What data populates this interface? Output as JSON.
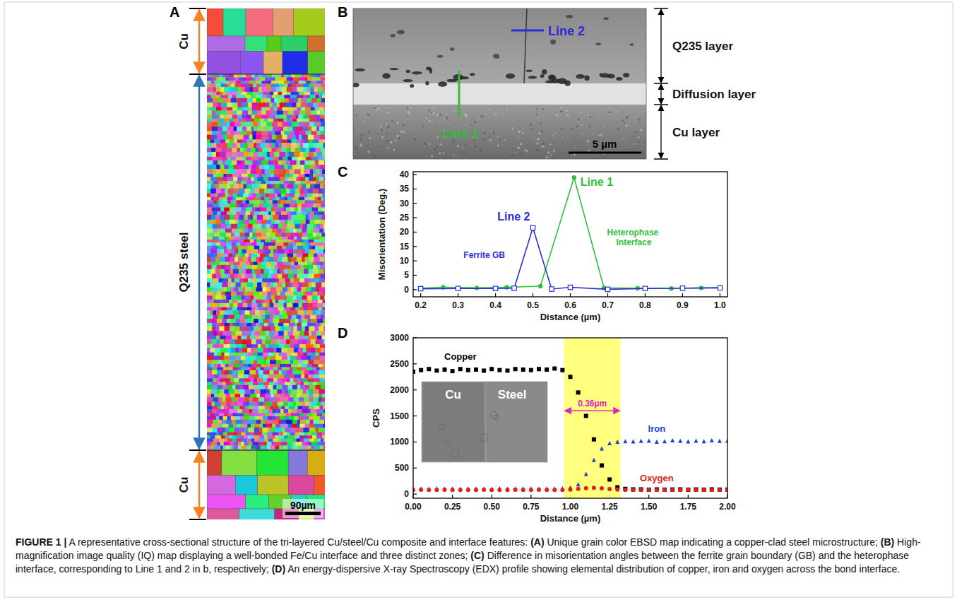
{
  "panel_letters": [
    "A",
    "B",
    "C",
    "D"
  ],
  "panel_a": {
    "labels": [
      "Cu",
      "Q235 steel",
      "Cu"
    ],
    "scale_bar": "90µm"
  },
  "panel_b": {
    "lines": [
      "Line 1",
      "Line 2"
    ],
    "layers": [
      "Q235 layer",
      "Diffusion layer",
      "Cu layer"
    ],
    "scale_bar": "5 µm"
  },
  "chart_data": [
    {
      "type": "line",
      "x_label": "Distance (µm)",
      "y_label": "Misorientation (Deg.)",
      "xlim": [
        0.18,
        1.02
      ],
      "xticks": [
        0.2,
        0.3,
        0.4,
        0.5,
        0.6,
        0.7,
        0.8,
        0.9,
        {
          "value": 1,
          "label": "1.0"
        }
      ],
      "ylim": [
        -2.5,
        41
      ],
      "yticks": [
        0,
        5,
        10,
        15,
        20,
        25,
        30,
        35,
        40
      ],
      "series": [
        {
          "name": "Line 1",
          "color": "#2fbf3a",
          "marker": "circle",
          "x": [
            0.2,
            0.26,
            0.35,
            0.43,
            0.52,
            0.61,
            0.69,
            0.78,
            0.87,
            0.95,
            1.0
          ],
          "values": [
            0.5,
            0.8,
            0.6,
            0.8,
            1.2,
            39,
            0.6,
            0.5,
            0.4,
            0.6,
            0.7
          ]
        },
        {
          "name": "Line 2",
          "color": "#2b2bd9",
          "marker": "square",
          "x": [
            0.2,
            0.3,
            0.4,
            0.45,
            0.5,
            0.55,
            0.6,
            0.7,
            0.8,
            0.9,
            1.0
          ],
          "values": [
            0.3,
            0.4,
            0.4,
            0.5,
            21.5,
            0.2,
            0.8,
            0.1,
            0.4,
            0.5,
            0.6
          ]
        }
      ],
      "annotations": [
        {
          "text": "Ferrite GB",
          "x": 0.37,
          "y": 11,
          "color": "#2b2bd9"
        },
        {
          "text": "Heterophase Interface",
          "x": 0.77,
          "y": 19,
          "color": "#2fbf3a"
        }
      ]
    },
    {
      "type": "scatter",
      "x_label": "Distance (µm)",
      "y_label": "CPS",
      "xlim": [
        0,
        2
      ],
      "xticks": [
        {
          "value": 0,
          "label": "0.00"
        },
        0.25,
        {
          "value": 0.5,
          "label": "0.50"
        },
        0.75,
        {
          "value": 1,
          "label": "1.00"
        },
        1.25,
        {
          "value": 1.5,
          "label": "1.50"
        },
        1.75,
        {
          "value": 2,
          "label": "2.00"
        }
      ],
      "ylim": [
        -80,
        3000
      ],
      "yticks": [
        0,
        500,
        1000,
        1500,
        2000,
        2500,
        3000
      ],
      "x": [
        0,
        0.05,
        0.1,
        0.15,
        0.2,
        0.25,
        0.3,
        0.35,
        0.4,
        0.45,
        0.5,
        0.55,
        0.6,
        0.65,
        0.7,
        0.75,
        0.8,
        0.85,
        0.9,
        0.95,
        1.0,
        1.05,
        1.1,
        1.15,
        1.2,
        1.25,
        1.3,
        1.35,
        1.4,
        1.45,
        1.5,
        1.55,
        1.6,
        1.65,
        1.7,
        1.75,
        1.8,
        1.85,
        1.9,
        1.95,
        2.0
      ],
      "series": [
        {
          "name": "Copper",
          "color": "#000000",
          "marker": "square",
          "values": [
            2350,
            2380,
            2400,
            2370,
            2390,
            2360,
            2400,
            2380,
            2390,
            2370,
            2400,
            2380,
            2370,
            2400,
            2390,
            2380,
            2400,
            2390,
            2410,
            2380,
            2250,
            1950,
            1500,
            1050,
            550,
            280,
            130,
            100,
            90,
            90,
            85,
            90,
            85,
            88,
            90,
            85,
            88,
            85,
            90,
            86,
            85
          ]
        },
        {
          "name": "Iron",
          "color": "#1f3fd6",
          "marker": "triangle",
          "values": [
            95,
            100,
            98,
            102,
            97,
            100,
            96,
            101,
            99,
            100,
            98,
            102,
            97,
            100,
            99,
            101,
            98,
            100,
            99,
            102,
            120,
            180,
            380,
            650,
            870,
            970,
            1000,
            1010,
            1005,
            1015,
            1020,
            1000,
            1010,
            1025,
            1015,
            1005,
            1020,
            1010,
            1025,
            1015,
            1020
          ]
        },
        {
          "name": "Oxygen",
          "color": "#e02020",
          "marker": "circle",
          "values": [
            80,
            82,
            78,
            80,
            83,
            79,
            81,
            80,
            78,
            82,
            80,
            79,
            81,
            83,
            80,
            78,
            82,
            80,
            79,
            81,
            85,
            100,
            115,
            120,
            110,
            95,
            85,
            80,
            78,
            80,
            82,
            79,
            81,
            80,
            78,
            82,
            80,
            79,
            81,
            80,
            78
          ]
        }
      ],
      "highlight": {
        "x": [
          0.96,
          1.32
        ],
        "y": 1600,
        "label": "0.36µm",
        "color": "#ffff66"
      },
      "inset": {
        "labels": [
          "Cu",
          "Steel"
        ]
      }
    }
  ],
  "caption": [
    {
      "text": "FIGURE 1 |",
      "bold": true
    },
    {
      "text": " A representative cross-sectional structure of the tri-layered Cu/steel/Cu composite and interface features: ",
      "bold": false
    },
    {
      "text": "(A)",
      "bold": true
    },
    {
      "text": " Unique grain color EBSD map indicating a copper-clad steel microstructure; ",
      "bold": false
    },
    {
      "text": "(B)",
      "bold": true
    },
    {
      "text": " High-magnification image quality (IQ) map displaying a well-bonded Fe/Cu interface and three distinct zones; ",
      "bold": false
    },
    {
      "text": "(C)",
      "bold": true
    },
    {
      "text": " Difference in misorientation angles between the ferrite grain boundary (GB) and the heterophase interface, corresponding to Line 1 and 2 in b, respectively; ",
      "bold": false
    },
    {
      "text": "(D)",
      "bold": true
    },
    {
      "text": " An energy-dispersive X-ray Spectroscopy (EDX) profile showing elemental distribution of copper, iron and oxygen across the bond interface.",
      "bold": false
    }
  ]
}
